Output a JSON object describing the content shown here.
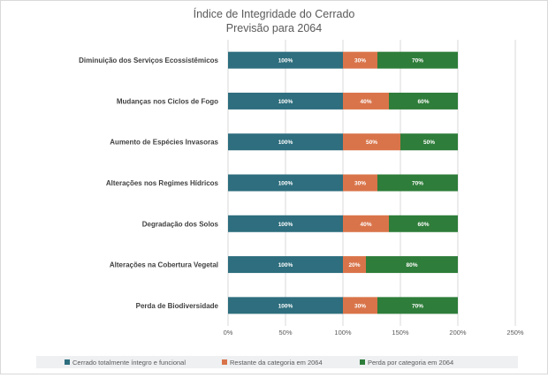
{
  "chart_data": {
    "type": "bar",
    "orientation": "horizontal",
    "stacked": true,
    "title": "Índice de Integridade do Cerrado",
    "subtitle": "Previsão para 2064",
    "categories": [
      "Diminuição dos Serviços Ecossistêmicos",
      "Mudanças nos Ciclos de Fogo",
      "Aumento de Espécies Invasoras",
      "Alterações nos Regimes Hídricos",
      "Degradação dos Solos",
      "Alterações na Cobertura Vegetal",
      "Perda de Biodiversidade"
    ],
    "series": [
      {
        "name": "Cerrado totalmente íntegro e funcional",
        "color": "#2e6e7e",
        "values": [
          100,
          100,
          100,
          100,
          100,
          100,
          100
        ]
      },
      {
        "name": "Restante da categoria em 2064",
        "color": "#d9744a",
        "values": [
          30,
          40,
          50,
          30,
          40,
          20,
          30
        ]
      },
      {
        "name": "Perda por categoria em 2064",
        "color": "#2e7d3a",
        "values": [
          70,
          60,
          50,
          70,
          60,
          80,
          70
        ]
      }
    ],
    "xlim": [
      0,
      250
    ],
    "xticks": [
      0,
      50,
      100,
      150,
      200,
      250
    ],
    "tick_suffix": "%",
    "grid": true,
    "legend_position": "bottom"
  }
}
